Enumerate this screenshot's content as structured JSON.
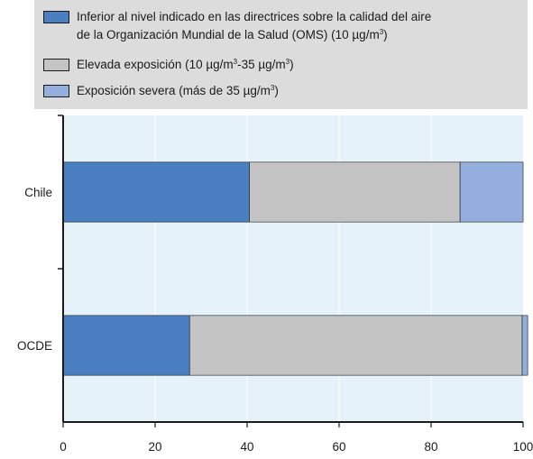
{
  "legend": {
    "items": [
      {
        "line1": "Inferior al nivel indicado en las directrices sobre la calidad del aire",
        "line2": "de la Organización Mundial de la Salud (OMS) (10 µg/m",
        "line2_sup": "3",
        "line2_end": ")",
        "color": "#4a7fc1"
      },
      {
        "text": "Elevada exposición (10 µg/m",
        "sup1": "3",
        "text_mid": "-35 µg/m",
        "sup2": "3",
        "text_end": ")",
        "color": "#c4c4c4"
      },
      {
        "text": "Exposición severa (más de 35 µg/m",
        "sup": "3",
        "text_end": ")",
        "color": "#94aedd"
      }
    ]
  },
  "chart_data": {
    "type": "bar",
    "orientation": "horizontal",
    "stacked": true,
    "categories": [
      "Chile",
      "OCDE"
    ],
    "series": [
      {
        "name": "Inferior al nivel indicado en las directrices sobre la calidad del aire de la Organización Mundial de la Salud (OMS) (10 µg/m3)",
        "values": [
          40.5,
          27.5
        ],
        "color": "#4a7fc1"
      },
      {
        "name": "Elevada exposición (10 µg/m3-35 µg/m3)",
        "values": [
          45.8,
          72.3
        ],
        "color": "#c4c4c4"
      },
      {
        "name": "Exposición severa (más de 35 µg/m3)",
        "values": [
          13.7,
          1.2
        ],
        "color": "#94aedd"
      }
    ],
    "xlim": [
      0,
      100
    ],
    "xticks": [
      "0",
      "20",
      "40",
      "60",
      "80",
      "100"
    ],
    "grid": true,
    "plot_bg": "#e6f2fa",
    "legend_position": "top"
  }
}
